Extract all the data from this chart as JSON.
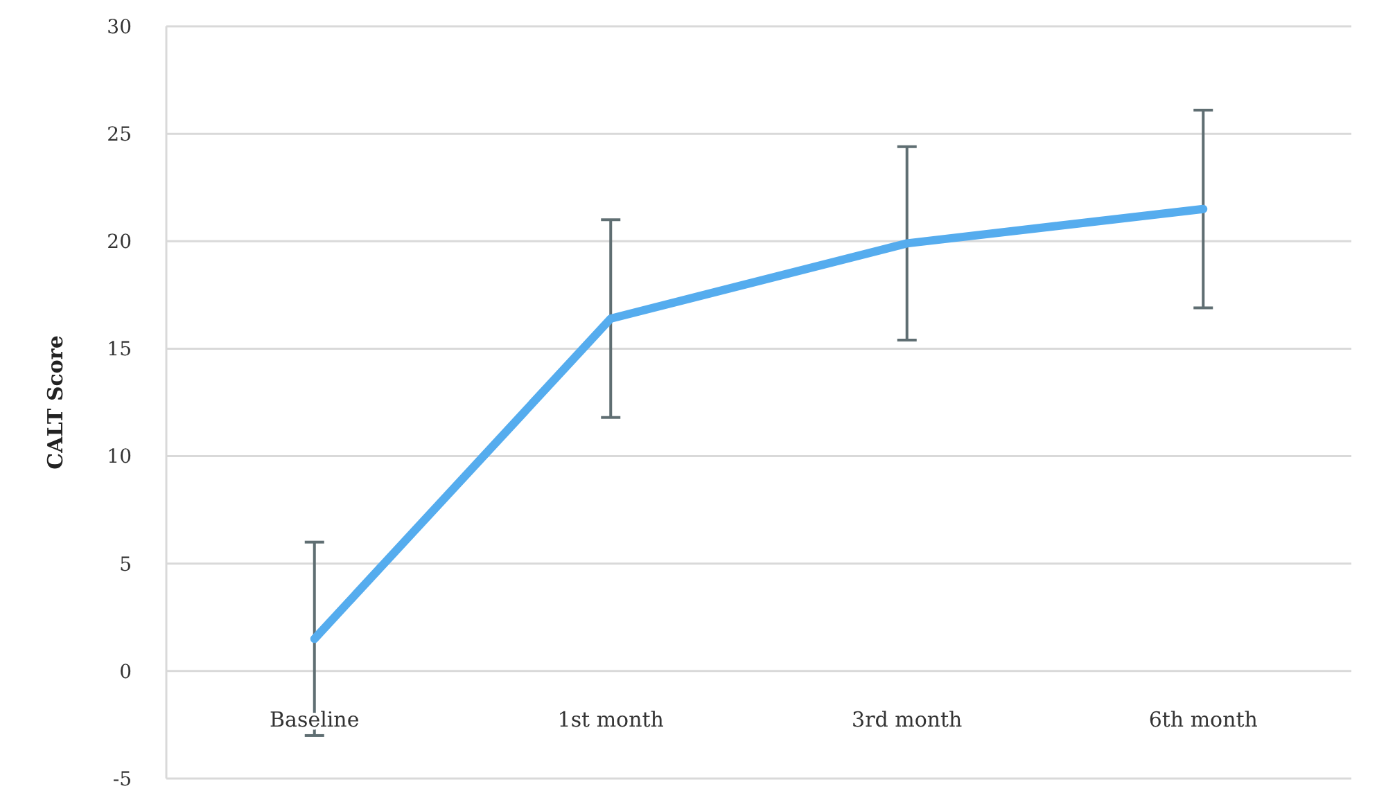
{
  "chart_data": {
    "type": "line",
    "ylabel": "CALT Score",
    "categories": [
      "Baseline",
      "1st month",
      "3rd month",
      "6th month"
    ],
    "series": [
      {
        "color": "#55acee",
        "values": [
          1.5,
          16.4,
          19.9,
          21.5
        ],
        "errors": [
          4.5,
          4.6,
          4.5,
          4.6
        ]
      }
    ],
    "ylim": [
      -5,
      30
    ],
    "yticks": [
      -5,
      0,
      5,
      10,
      15,
      20,
      25,
      30
    ],
    "grid": "y",
    "marker": "none",
    "line_style": "solid"
  }
}
